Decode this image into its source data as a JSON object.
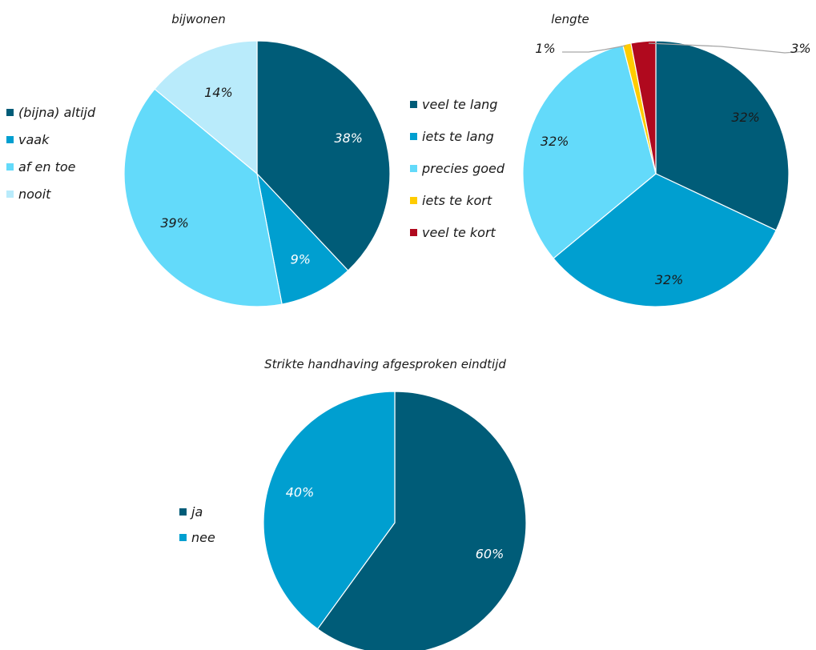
{
  "chart_data": [
    {
      "type": "pie",
      "title": "bijwonen",
      "legend_position": "left",
      "label_color": [
        "#ffffff",
        "#ffffff",
        "#1a1a1a",
        "#1a1a1a"
      ],
      "slices": [
        {
          "label": "(bijna) altijd",
          "value": 38,
          "display": "38%",
          "color": "#005C78"
        },
        {
          "label": "vaak",
          "value": 9,
          "display": "9%",
          "color": "#009FD0"
        },
        {
          "label": "af en toe",
          "value": 39,
          "display": "39%",
          "color": "#63DAFA"
        },
        {
          "label": "nooit",
          "value": 14,
          "display": "14%",
          "color": "#B9EBFB"
        }
      ]
    },
    {
      "type": "pie",
      "title": "lengte",
      "legend_position": "left",
      "label_color": [
        "#1a1a1a",
        "#1a1a1a",
        "#1a1a1a",
        "#1a1a1a",
        "#1a1a1a"
      ],
      "slices": [
        {
          "label": "veel te lang",
          "value": 32,
          "display": "32%",
          "color": "#005C78"
        },
        {
          "label": "iets te lang",
          "value": 32,
          "display": "32%",
          "color": "#009FD0"
        },
        {
          "label": "precies goed",
          "value": 32,
          "display": "32%",
          "color": "#63DAFA"
        },
        {
          "label": "iets te kort",
          "value": 1,
          "display": "1%",
          "color": "#FFCC00"
        },
        {
          "label": "veel te kort",
          "value": 3,
          "display": "3%",
          "color": "#B0091E"
        }
      ]
    },
    {
      "type": "pie",
      "title": "Strikte handhaving afgesproken eindtijd",
      "legend_position": "left",
      "label_color": [
        "#ffffff",
        "#ffffff"
      ],
      "slices": [
        {
          "label": "ja",
          "value": 60,
          "display": "60%",
          "color": "#005C78"
        },
        {
          "label": "nee",
          "value": 40,
          "display": "40%",
          "color": "#009FD0"
        }
      ]
    }
  ]
}
